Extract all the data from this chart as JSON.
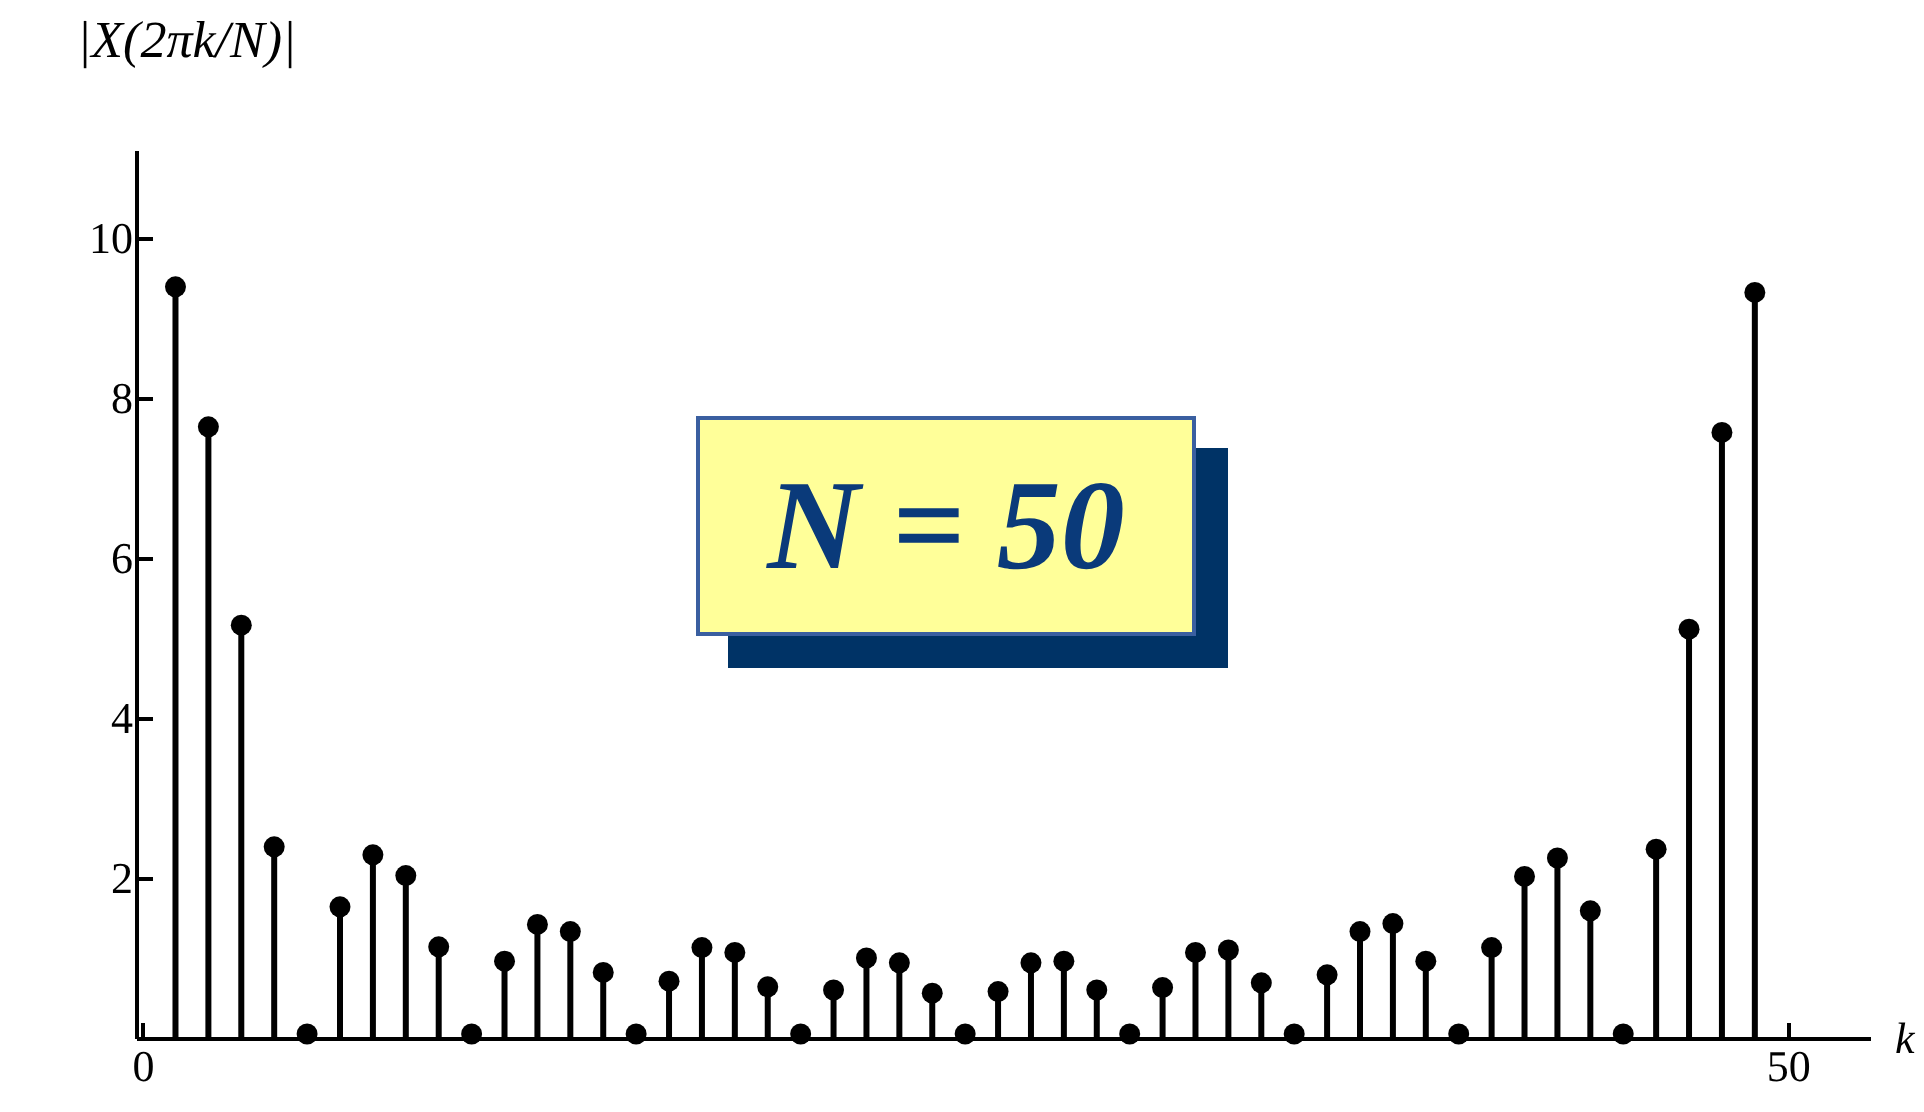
{
  "chart_data": {
    "type": "lollipop",
    "xlabel": "k",
    "ylabel": "|X(2πk/N)|",
    "annotations": [
      "N = 50"
    ],
    "x": [
      1,
      2,
      3,
      4,
      5,
      6,
      7,
      8,
      9,
      10,
      11,
      12,
      13,
      14,
      15,
      16,
      17,
      18,
      19,
      20,
      21,
      22,
      23,
      24,
      25,
      26,
      27,
      28,
      29,
      30,
      31,
      32,
      33,
      34,
      35,
      36,
      37,
      38,
      39,
      40,
      41,
      42,
      43,
      44,
      45,
      46,
      47,
      48,
      49
    ],
    "series": [
      {
        "color": "#000000",
        "values": [
          9.39,
          7.64,
          5.16,
          2.39,
          0.05,
          1.64,
          2.29,
          2.03,
          1.14,
          0.05,
          0.96,
          1.42,
          1.33,
          0.82,
          0.05,
          0.71,
          1.13,
          1.07,
          0.64,
          0.05,
          0.6,
          1.0,
          0.94,
          0.56,
          0.05,
          0.58,
          0.94,
          0.96,
          0.6,
          0.05,
          0.63,
          1.07,
          1.1,
          0.69,
          0.05,
          0.79,
          1.33,
          1.43,
          0.96,
          0.05,
          1.13,
          2.02,
          2.25,
          1.59,
          0.05,
          2.36,
          5.11,
          7.57,
          9.32
        ]
      }
    ],
    "xlim": [
      -0.2,
      52.5
    ],
    "ylim": [
      0,
      11.1
    ],
    "xticks": [
      0,
      50
    ],
    "yticks": [
      2,
      4,
      6,
      8,
      10
    ],
    "marker": "circle"
  }
}
